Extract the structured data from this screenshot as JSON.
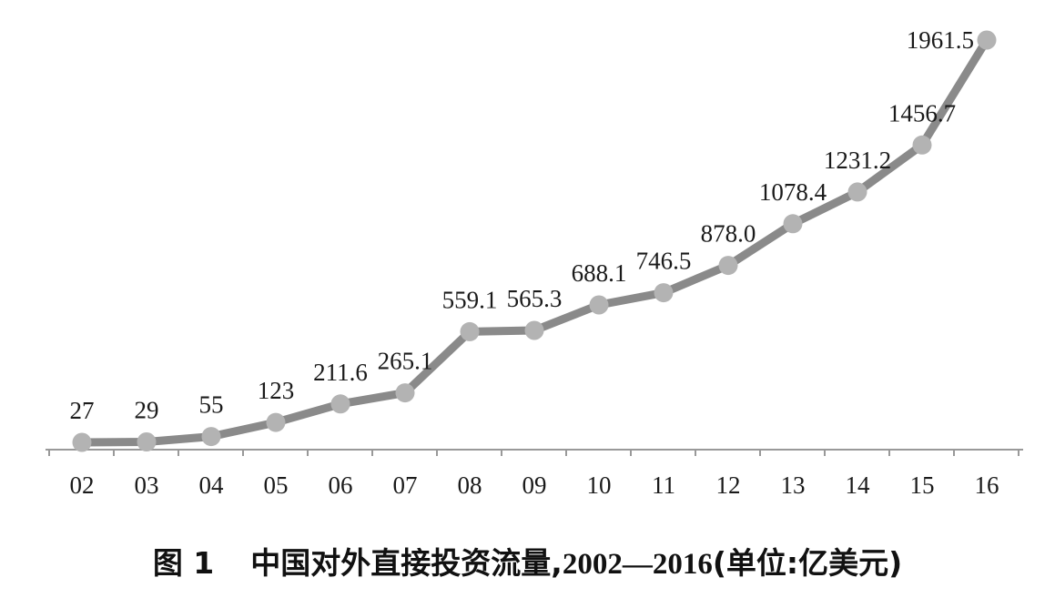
{
  "chart_data": {
    "type": "line",
    "title": "中国对外直接投资流量,2002—2016(单位:亿美元)",
    "figure_label": "图 1",
    "caption_main": "中国对外直接投资流量,",
    "caption_years": "2002—2016",
    "caption_unit": "(单位:亿美元)",
    "categories": [
      "02",
      "03",
      "04",
      "05",
      "06",
      "07",
      "08",
      "09",
      "10",
      "11",
      "12",
      "13",
      "14",
      "15",
      "16"
    ],
    "data_labels": [
      "27",
      "29",
      "55",
      "123",
      "211.6",
      "265.1",
      "559.1",
      "565.3",
      "688.1",
      "746.5",
      "878.0",
      "1078.4",
      "1231.2",
      "1456.7",
      "1961.5"
    ],
    "values": [
      27,
      29,
      55,
      123,
      211.6,
      265.1,
      559.1,
      565.3,
      688.1,
      746.5,
      878.0,
      1078.4,
      1231.2,
      1456.7,
      1961.5
    ],
    "ylim": [
      0,
      2000
    ],
    "grid": false,
    "line_color": "#8a8a8a",
    "marker_color": "#b3b3b3",
    "axis_color": "#999999"
  }
}
